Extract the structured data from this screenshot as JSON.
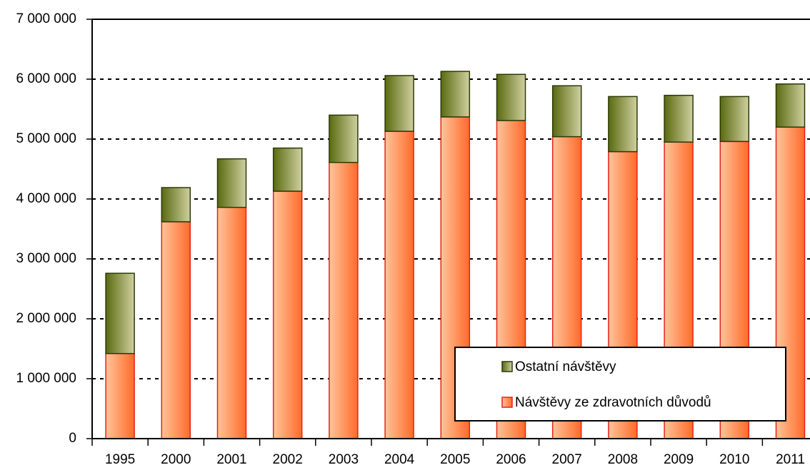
{
  "chart_data": {
    "type": "stacked_bar",
    "categories": [
      "1995",
      "2000",
      "2001",
      "2002",
      "2003",
      "2004",
      "2005",
      "2006",
      "2007",
      "2008",
      "2009",
      "2010",
      "2011"
    ],
    "series": [
      {
        "name": "Návštěvy ze zdravotních důvodů",
        "color": "#ff6a2a",
        "values": [
          1420000,
          3620000,
          3860000,
          4130000,
          4610000,
          5130000,
          5370000,
          5310000,
          5040000,
          4790000,
          4950000,
          4960000,
          5200000
        ]
      },
      {
        "name": "Ostatní návštěvy",
        "color": "#7a8a20",
        "values": [
          1340000,
          570000,
          810000,
          720000,
          790000,
          930000,
          760000,
          770000,
          850000,
          920000,
          780000,
          750000,
          720000
        ]
      }
    ],
    "ylim": [
      0,
      7000000
    ],
    "yticks": [
      0,
      {
        "value": 1000000,
        "label": "1 000 000"
      },
      {
        "value": 2000000,
        "label": "2 000 000"
      },
      {
        "value": 3000000,
        "label": "3 000 000"
      },
      {
        "value": 4000000,
        "label": "4 000 000"
      },
      {
        "value": 5000000,
        "label": "5 000 000"
      },
      {
        "value": 6000000,
        "label": "6 000 000"
      },
      {
        "value": 7000000,
        "label": "7 000 000"
      }
    ],
    "grid": true,
    "legend": "bottom-right"
  }
}
